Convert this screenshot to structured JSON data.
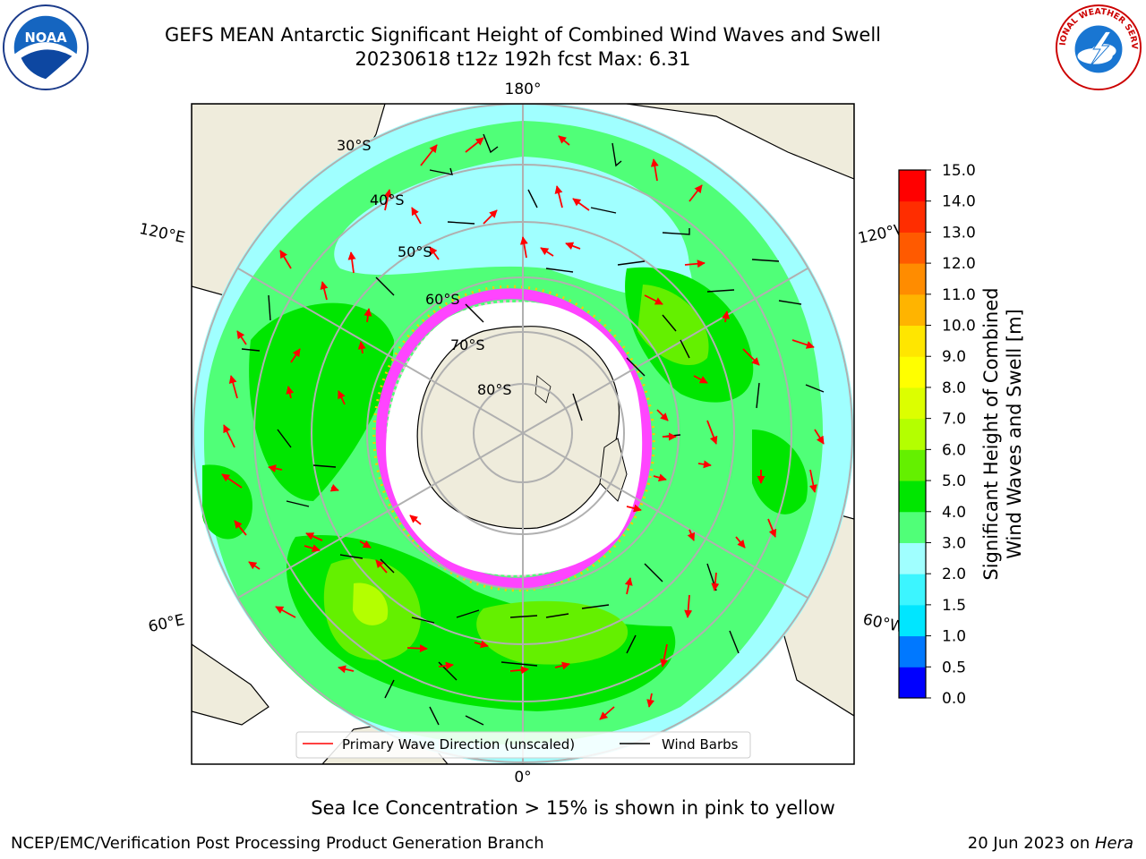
{
  "title": {
    "line1": "GEFS MEAN Antarctic Significant Height of Combined Wind Waves and Swell",
    "line2": "20230618 t12z 192h fcst   Max: 6.31"
  },
  "logos": {
    "left": {
      "icon": "noaa-logo",
      "text": "NOAA"
    },
    "right": {
      "icon": "national-weather-service-logo",
      "text": "NATIONAL WEATHER SERVICE"
    }
  },
  "map": {
    "projection": "south-polar-stereographic",
    "longitude_labels": {
      "top": "180°",
      "bottom": "0°",
      "upper_left": "120°E",
      "upper_right": "120°W",
      "lower_left": "60°E",
      "lower_right": "60°W"
    },
    "latitude_labels": [
      "30°S",
      "40°S",
      "50°S",
      "60°S",
      "70°S",
      "80°S"
    ],
    "legend": [
      {
        "label": "Primary Wave Direction (unscaled)",
        "color": "#ff0000"
      },
      {
        "label": "Wind Barbs",
        "color": "#000000"
      }
    ]
  },
  "colorbar": {
    "label_line1": "Significant Height of Combined",
    "label_line2": "Wind Waves and Swell [m]",
    "ticks": [
      "0.0",
      "0.5",
      "1.0",
      "1.5",
      "2.0",
      "3.0",
      "4.0",
      "5.0",
      "6.0",
      "7.0",
      "8.0",
      "9.0",
      "10.0",
      "11.0",
      "12.0",
      "13.0",
      "14.0",
      "15.0"
    ],
    "colors": [
      "#0000ff",
      "#0078ff",
      "#00e6ff",
      "#3cf5ff",
      "#a0ffff",
      "#50ff78",
      "#00e600",
      "#64f000",
      "#b4ff00",
      "#dcff00",
      "#ffff00",
      "#ffe600",
      "#ffb400",
      "#ff8c00",
      "#ff5a00",
      "#ff2d00",
      "#ff0000"
    ]
  },
  "note": "Sea Ice Concentration > 15% is shown in pink to yellow",
  "footer": {
    "left": "NCEP/EMC/Verification Post Processing Product Generation Branch",
    "right_date": "20 Jun 2023 on ",
    "right_machine": "Hera"
  }
}
